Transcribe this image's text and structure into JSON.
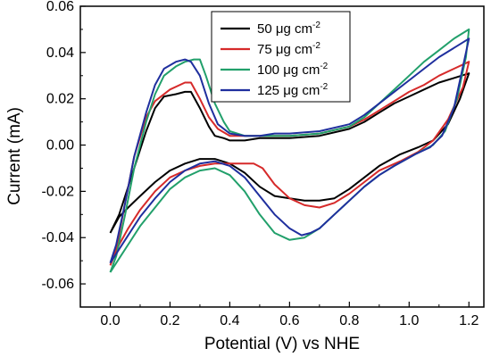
{
  "chart_data": {
    "type": "line",
    "title": "",
    "xlabel": "Potential (V) vs NHE",
    "ylabel": "Current (mA)",
    "xlim": [
      -0.1,
      1.25
    ],
    "ylim": [
      -0.07,
      0.06
    ],
    "xticks": [
      "0.0",
      "0.2",
      "0.4",
      "0.6",
      "0.8",
      "1.0",
      "1.2"
    ],
    "yticks": [
      "-0.06",
      "-0.04",
      "-0.02",
      "0.00",
      "0.02",
      "0.04",
      "0.06"
    ],
    "grid": false,
    "legend_position": "top-center",
    "series": [
      {
        "name": "50 μg cm",
        "name_superscript": "-2",
        "color": "#000000",
        "points": [
          [
            0.0,
            -0.038
          ],
          [
            0.03,
            -0.03
          ],
          [
            0.08,
            -0.01
          ],
          [
            0.12,
            0.006
          ],
          [
            0.15,
            0.016
          ],
          [
            0.18,
            0.021
          ],
          [
            0.22,
            0.022
          ],
          [
            0.25,
            0.023
          ],
          [
            0.27,
            0.023
          ],
          [
            0.3,
            0.016
          ],
          [
            0.33,
            0.008
          ],
          [
            0.35,
            0.004
          ],
          [
            0.38,
            0.003
          ],
          [
            0.4,
            0.002
          ],
          [
            0.45,
            0.002
          ],
          [
            0.5,
            0.003
          ],
          [
            0.55,
            0.003
          ],
          [
            0.6,
            0.003
          ],
          [
            0.7,
            0.004
          ],
          [
            0.8,
            0.007
          ],
          [
            0.85,
            0.01
          ],
          [
            0.9,
            0.014
          ],
          [
            0.95,
            0.018
          ],
          [
            1.0,
            0.021
          ],
          [
            1.05,
            0.024
          ],
          [
            1.1,
            0.027
          ],
          [
            1.15,
            0.029
          ],
          [
            1.2,
            0.031
          ],
          [
            1.2,
            0.031
          ],
          [
            1.17,
            0.02
          ],
          [
            1.13,
            0.009
          ],
          [
            1.08,
            0.002
          ],
          [
            1.03,
            -0.001
          ],
          [
            0.97,
            -0.004
          ],
          [
            0.9,
            -0.009
          ],
          [
            0.85,
            -0.014
          ],
          [
            0.8,
            -0.019
          ],
          [
            0.75,
            -0.023
          ],
          [
            0.7,
            -0.024
          ],
          [
            0.65,
            -0.024
          ],
          [
            0.6,
            -0.023
          ],
          [
            0.55,
            -0.022
          ],
          [
            0.5,
            -0.018
          ],
          [
            0.45,
            -0.012
          ],
          [
            0.4,
            -0.008
          ],
          [
            0.35,
            -0.006
          ],
          [
            0.3,
            -0.006
          ],
          [
            0.25,
            -0.008
          ],
          [
            0.2,
            -0.011
          ],
          [
            0.15,
            -0.016
          ],
          [
            0.1,
            -0.022
          ],
          [
            0.06,
            -0.027
          ],
          [
            0.03,
            -0.031
          ],
          [
            0.0,
            -0.038
          ]
        ]
      },
      {
        "name": "75 μg cm",
        "name_superscript": "-2",
        "color": "#d62a2a",
        "points": [
          [
            0.0,
            -0.052
          ],
          [
            0.02,
            -0.045
          ],
          [
            0.05,
            -0.025
          ],
          [
            0.08,
            -0.005
          ],
          [
            0.12,
            0.012
          ],
          [
            0.15,
            0.019
          ],
          [
            0.2,
            0.024
          ],
          [
            0.25,
            0.027
          ],
          [
            0.27,
            0.027
          ],
          [
            0.3,
            0.02
          ],
          [
            0.33,
            0.012
          ],
          [
            0.36,
            0.007
          ],
          [
            0.4,
            0.004
          ],
          [
            0.45,
            0.004
          ],
          [
            0.5,
            0.004
          ],
          [
            0.55,
            0.004
          ],
          [
            0.6,
            0.004
          ],
          [
            0.7,
            0.005
          ],
          [
            0.8,
            0.008
          ],
          [
            0.85,
            0.011
          ],
          [
            0.9,
            0.015
          ],
          [
            0.95,
            0.019
          ],
          [
            1.0,
            0.023
          ],
          [
            1.05,
            0.026
          ],
          [
            1.1,
            0.03
          ],
          [
            1.15,
            0.033
          ],
          [
            1.2,
            0.036
          ],
          [
            1.2,
            0.036
          ],
          [
            1.18,
            0.025
          ],
          [
            1.13,
            0.011
          ],
          [
            1.08,
            0.002
          ],
          [
            1.03,
            -0.003
          ],
          [
            0.97,
            -0.007
          ],
          [
            0.9,
            -0.011
          ],
          [
            0.85,
            -0.016
          ],
          [
            0.8,
            -0.021
          ],
          [
            0.75,
            -0.025
          ],
          [
            0.7,
            -0.027
          ],
          [
            0.65,
            -0.026
          ],
          [
            0.6,
            -0.023
          ],
          [
            0.55,
            -0.017
          ],
          [
            0.51,
            -0.01
          ],
          [
            0.48,
            -0.008
          ],
          [
            0.45,
            -0.008
          ],
          [
            0.4,
            -0.008
          ],
          [
            0.35,
            -0.008
          ],
          [
            0.3,
            -0.009
          ],
          [
            0.25,
            -0.011
          ],
          [
            0.2,
            -0.014
          ],
          [
            0.15,
            -0.02
          ],
          [
            0.1,
            -0.028
          ],
          [
            0.06,
            -0.036
          ],
          [
            0.03,
            -0.043
          ],
          [
            0.0,
            -0.052
          ]
        ]
      },
      {
        "name": "100 μg cm",
        "name_superscript": "-2",
        "color": "#22a06b",
        "points": [
          [
            0.0,
            -0.055
          ],
          [
            0.02,
            -0.048
          ],
          [
            0.05,
            -0.03
          ],
          [
            0.08,
            -0.01
          ],
          [
            0.12,
            0.01
          ],
          [
            0.15,
            0.022
          ],
          [
            0.18,
            0.03
          ],
          [
            0.22,
            0.034
          ],
          [
            0.25,
            0.036
          ],
          [
            0.28,
            0.037
          ],
          [
            0.3,
            0.037
          ],
          [
            0.32,
            0.03
          ],
          [
            0.35,
            0.018
          ],
          [
            0.38,
            0.01
          ],
          [
            0.4,
            0.006
          ],
          [
            0.45,
            0.004
          ],
          [
            0.5,
            0.004
          ],
          [
            0.55,
            0.004
          ],
          [
            0.6,
            0.004
          ],
          [
            0.7,
            0.005
          ],
          [
            0.8,
            0.008
          ],
          [
            0.85,
            0.012
          ],
          [
            0.9,
            0.018
          ],
          [
            0.95,
            0.024
          ],
          [
            1.0,
            0.03
          ],
          [
            1.05,
            0.036
          ],
          [
            1.1,
            0.041
          ],
          [
            1.15,
            0.046
          ],
          [
            1.2,
            0.05
          ],
          [
            1.2,
            0.05
          ],
          [
            1.19,
            0.038
          ],
          [
            1.16,
            0.02
          ],
          [
            1.12,
            0.006
          ],
          [
            1.08,
            0.0
          ],
          [
            1.02,
            -0.004
          ],
          [
            0.95,
            -0.009
          ],
          [
            0.9,
            -0.013
          ],
          [
            0.85,
            -0.018
          ],
          [
            0.8,
            -0.024
          ],
          [
            0.75,
            -0.03
          ],
          [
            0.7,
            -0.036
          ],
          [
            0.65,
            -0.04
          ],
          [
            0.6,
            -0.041
          ],
          [
            0.55,
            -0.038
          ],
          [
            0.5,
            -0.03
          ],
          [
            0.45,
            -0.02
          ],
          [
            0.4,
            -0.013
          ],
          [
            0.35,
            -0.01
          ],
          [
            0.3,
            -0.011
          ],
          [
            0.25,
            -0.014
          ],
          [
            0.2,
            -0.019
          ],
          [
            0.15,
            -0.027
          ],
          [
            0.1,
            -0.035
          ],
          [
            0.06,
            -0.043
          ],
          [
            0.03,
            -0.049
          ],
          [
            0.0,
            -0.055
          ]
        ]
      },
      {
        "name": "125 μg cm",
        "name_superscript": "-2",
        "color": "#1f2f9e",
        "points": [
          [
            0.0,
            -0.051
          ],
          [
            0.02,
            -0.043
          ],
          [
            0.05,
            -0.025
          ],
          [
            0.08,
            -0.005
          ],
          [
            0.12,
            0.014
          ],
          [
            0.15,
            0.026
          ],
          [
            0.18,
            0.033
          ],
          [
            0.22,
            0.036
          ],
          [
            0.25,
            0.037
          ],
          [
            0.27,
            0.036
          ],
          [
            0.3,
            0.03
          ],
          [
            0.33,
            0.018
          ],
          [
            0.36,
            0.009
          ],
          [
            0.4,
            0.005
          ],
          [
            0.45,
            0.004
          ],
          [
            0.5,
            0.004
          ],
          [
            0.55,
            0.005
          ],
          [
            0.6,
            0.005
          ],
          [
            0.7,
            0.006
          ],
          [
            0.8,
            0.009
          ],
          [
            0.85,
            0.013
          ],
          [
            0.9,
            0.018
          ],
          [
            0.95,
            0.023
          ],
          [
            1.0,
            0.028
          ],
          [
            1.05,
            0.033
          ],
          [
            1.1,
            0.038
          ],
          [
            1.15,
            0.042
          ],
          [
            1.2,
            0.046
          ],
          [
            1.2,
            0.046
          ],
          [
            1.18,
            0.034
          ],
          [
            1.15,
            0.016
          ],
          [
            1.11,
            0.004
          ],
          [
            1.07,
            -0.001
          ],
          [
            1.02,
            -0.004
          ],
          [
            0.95,
            -0.009
          ],
          [
            0.9,
            -0.013
          ],
          [
            0.85,
            -0.018
          ],
          [
            0.8,
            -0.024
          ],
          [
            0.75,
            -0.03
          ],
          [
            0.7,
            -0.036
          ],
          [
            0.67,
            -0.038
          ],
          [
            0.64,
            -0.039
          ],
          [
            0.6,
            -0.036
          ],
          [
            0.55,
            -0.03
          ],
          [
            0.5,
            -0.022
          ],
          [
            0.45,
            -0.014
          ],
          [
            0.4,
            -0.009
          ],
          [
            0.35,
            -0.007
          ],
          [
            0.3,
            -0.008
          ],
          [
            0.25,
            -0.011
          ],
          [
            0.2,
            -0.016
          ],
          [
            0.15,
            -0.023
          ],
          [
            0.1,
            -0.031
          ],
          [
            0.06,
            -0.039
          ],
          [
            0.03,
            -0.045
          ],
          [
            0.0,
            -0.051
          ]
        ]
      }
    ]
  }
}
